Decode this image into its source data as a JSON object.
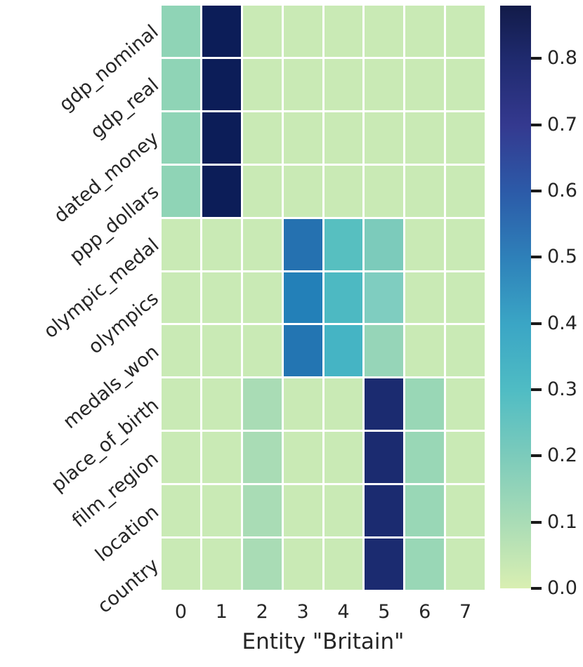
{
  "chart_data": {
    "type": "heatmap",
    "xlabel": "Entity \"Britain\"",
    "ylabel": "",
    "rows": [
      "gdp_nominal",
      "gdp_real",
      "dated_money",
      "ppp_dollars",
      "olympic_medal",
      "olympics",
      "medals_won",
      "place_of_birth",
      "film_region",
      "location",
      "country"
    ],
    "columns": [
      "0",
      "1",
      "2",
      "3",
      "4",
      "5",
      "6",
      "7"
    ],
    "values": [
      [
        0.16,
        0.88,
        0.0,
        0.0,
        0.0,
        0.0,
        0.0,
        0.0
      ],
      [
        0.16,
        0.88,
        0.0,
        0.0,
        0.0,
        0.0,
        0.0,
        0.0
      ],
      [
        0.16,
        0.88,
        0.0,
        0.0,
        0.0,
        0.0,
        0.0,
        0.0
      ],
      [
        0.16,
        0.88,
        0.0,
        0.0,
        0.0,
        0.0,
        0.0,
        0.0
      ],
      [
        0.0,
        0.0,
        0.0,
        0.52,
        0.28,
        0.2,
        0.0,
        0.0
      ],
      [
        0.0,
        0.0,
        0.0,
        0.49,
        0.31,
        0.19,
        0.0,
        0.0
      ],
      [
        0.0,
        0.0,
        0.0,
        0.51,
        0.33,
        0.14,
        0.0,
        0.0
      ],
      [
        0.0,
        0.0,
        0.11,
        0.0,
        0.0,
        0.79,
        0.14,
        0.0
      ],
      [
        0.0,
        0.0,
        0.11,
        0.0,
        0.0,
        0.79,
        0.14,
        0.0
      ],
      [
        0.0,
        0.0,
        0.11,
        0.0,
        0.0,
        0.79,
        0.14,
        0.0
      ],
      [
        0.0,
        0.0,
        0.11,
        0.0,
        0.0,
        0.79,
        0.14,
        0.0
      ]
    ],
    "cell_colors": [
      [
        "#8fd4b6",
        "#0c1d58",
        "#c9eab5",
        "#c9eab5",
        "#c9eab5",
        "#c9eab5",
        "#c9eab5",
        "#c9eab5"
      ],
      [
        "#8fd4b6",
        "#0c1d58",
        "#c9eab5",
        "#c9eab5",
        "#c9eab5",
        "#c9eab5",
        "#c9eab5",
        "#c9eab5"
      ],
      [
        "#8fd4b6",
        "#0c1d58",
        "#c9eab5",
        "#c9eab5",
        "#c9eab5",
        "#c9eab5",
        "#c9eab5",
        "#c9eab5"
      ],
      [
        "#8fd4b6",
        "#0c1d58",
        "#c9eab5",
        "#c9eab5",
        "#c9eab5",
        "#c9eab5",
        "#c9eab5",
        "#c9eab5"
      ],
      [
        "#c9eab5",
        "#c9eab5",
        "#c9eab5",
        "#2571b0",
        "#57bfc0",
        "#7ccbbb",
        "#c9eab5",
        "#c9eab5"
      ],
      [
        "#c9eab5",
        "#c9eab5",
        "#c9eab5",
        "#2380b8",
        "#4db9c2",
        "#7fcdc0",
        "#c9eab5",
        "#c9eab5"
      ],
      [
        "#c9eab5",
        "#c9eab5",
        "#c9eab5",
        "#2375b2",
        "#45b4c4",
        "#96d5b8",
        "#c9eab5",
        "#c9eab5"
      ],
      [
        "#c9eab5",
        "#c9eab5",
        "#a9dcb5",
        "#c9eab5",
        "#c9eab5",
        "#1b2b70",
        "#99d7b6",
        "#c9eab5"
      ],
      [
        "#c9eab5",
        "#c9eab5",
        "#a9dcb5",
        "#c9eab5",
        "#c9eab5",
        "#1b2b70",
        "#99d7b6",
        "#c9eab5"
      ],
      [
        "#c9eab5",
        "#c9eab5",
        "#a9dcb5",
        "#c9eab5",
        "#c9eab5",
        "#1b2b70",
        "#99d7b6",
        "#c9eab5"
      ],
      [
        "#c9eab5",
        "#c9eab5",
        "#a9dcb5",
        "#c9eab5",
        "#c9eab5",
        "#1b2b70",
        "#99d7b6",
        "#c9eab5"
      ]
    ],
    "colorbar": {
      "vmin": 0.0,
      "vmax": 0.88,
      "tick_labels": [
        "0.8",
        "0.7",
        "0.6",
        "0.5",
        "0.4",
        "0.3",
        "0.2",
        "0.1",
        "0.0"
      ],
      "tick_values": [
        0.8,
        0.7,
        0.6,
        0.5,
        0.4,
        0.3,
        0.2,
        0.1,
        0.0
      ],
      "gradient_stops": [
        {
          "value": 0.0,
          "color": "#d9efb2"
        },
        {
          "value": 0.1,
          "color": "#a9dcb6"
        },
        {
          "value": 0.2,
          "color": "#7ccbbb"
        },
        {
          "value": 0.3,
          "color": "#4fbcc4"
        },
        {
          "value": 0.4,
          "color": "#3aa5c5"
        },
        {
          "value": 0.5,
          "color": "#2e80b9"
        },
        {
          "value": 0.6,
          "color": "#2c5aa8"
        },
        {
          "value": 0.7,
          "color": "#34398f"
        },
        {
          "value": 0.8,
          "color": "#1f2a6e"
        },
        {
          "value": 0.88,
          "color": "#121b49"
        }
      ]
    },
    "layout": {
      "grid_gap_color": "#ffffff",
      "text_color": "#262626",
      "legend_position": "right"
    }
  }
}
